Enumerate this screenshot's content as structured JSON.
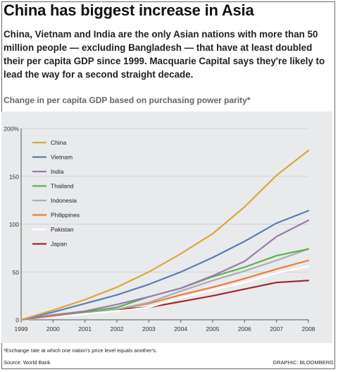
{
  "header": {
    "title": "China has biggest increase in Asia",
    "subtitle": "China, Vietnam and India are the only Asian nations with more than 50 million people — excluding Bangladesh — that have at least doubled their per capita GDP since 1999. Macquarie Capital says they're likely to lead the way for a second straight decade.",
    "chart_caption": "Change in per capita GDP based on purchasing power parity*"
  },
  "footer": {
    "footnote": "*Exchange rate at which one nation's price level equals another's.",
    "source": "Source: World Bank",
    "credit": "GRAPHIC: BLOOMBERG"
  },
  "chart_data": {
    "type": "line",
    "title": "",
    "xlabel": "",
    "ylabel": "",
    "x": [
      "1999",
      "2000",
      "2001",
      "2002",
      "2003",
      "2004",
      "2005",
      "2006",
      "2007",
      "2008"
    ],
    "ylim": [
      0,
      200
    ],
    "yticks": [
      0,
      50,
      100,
      150,
      200
    ],
    "ytick_labels": [
      "0",
      "50",
      "100",
      "150",
      "200%"
    ],
    "legend_position": "top-left",
    "series": [
      {
        "name": "China",
        "color": "#d9a83a",
        "values": [
          0,
          10,
          21,
          34,
          50,
          69,
          90,
          118,
          151,
          177
        ]
      },
      {
        "name": "Vietnam",
        "color": "#5b7db5",
        "values": [
          0,
          8,
          17,
          26,
          37,
          50,
          65,
          82,
          101,
          114
        ]
      },
      {
        "name": "India",
        "color": "#9a7bb0",
        "values": [
          0,
          5,
          9,
          16,
          24,
          33,
          46,
          61,
          87,
          104
        ]
      },
      {
        "name": "Thailand",
        "color": "#5fb04a",
        "values": [
          0,
          5,
          8,
          13,
          24,
          33,
          45,
          55,
          67,
          74
        ]
      },
      {
        "name": "Indonesia",
        "color": "#a8aeb6",
        "values": [
          0,
          5,
          8,
          11,
          18,
          30,
          41,
          51,
          62,
          74
        ]
      },
      {
        "name": "Philippines",
        "color": "#ef7d2d",
        "values": [
          0,
          4,
          8,
          11,
          17,
          26,
          34,
          43,
          53,
          62
        ]
      },
      {
        "name": "Pakistan",
        "color": "#ffffff",
        "values": [
          0,
          3,
          6,
          9,
          13,
          23,
          31,
          39,
          49,
          56
        ]
      },
      {
        "name": "Japan",
        "color": "#a12830",
        "values": [
          0,
          5,
          8,
          11,
          13,
          19,
          25,
          32,
          39,
          41
        ]
      }
    ]
  }
}
